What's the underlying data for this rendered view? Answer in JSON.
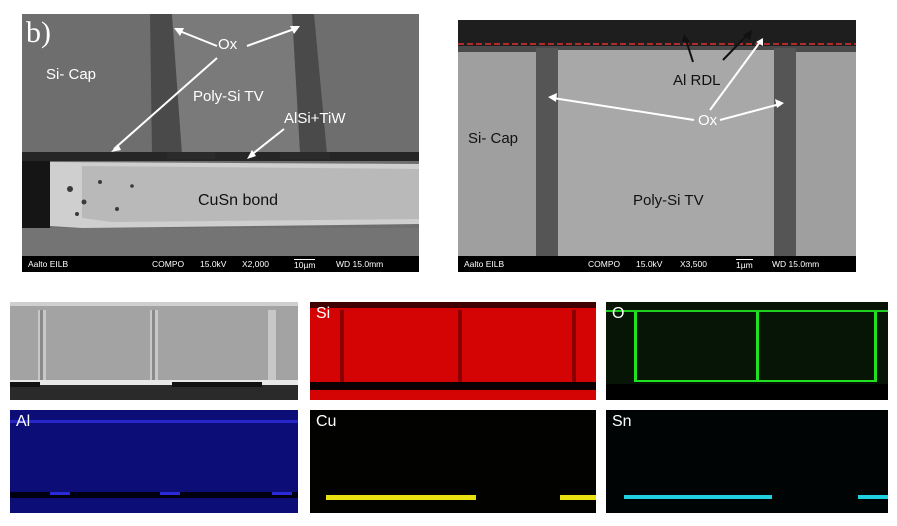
{
  "panel_b": {
    "letter": "b)",
    "labels": {
      "ox": "Ox",
      "si_cap": "Si- Cap",
      "poly_si_tv": "Poly-Si TV",
      "alsi_tiw": "AlSi+TiW",
      "cusn_bond": "CuSn bond"
    },
    "infobar": {
      "lab": "Aalto EILB",
      "mode": "COMPO",
      "kv": "15.0kV",
      "mag": "X2,000",
      "scale": "10µm",
      "wd": "WD 15.0mm"
    }
  },
  "panel_right": {
    "labels": {
      "al_rdl": "Al RDL",
      "ox": "Ox",
      "si_cap": "Si- Cap",
      "poly_si_tv": "Poly-Si TV"
    },
    "infobar": {
      "lab": "Aalto EILB",
      "mode": "COMPO",
      "kv": "15.0kV",
      "mag": "X3,500",
      "scale": "1µm",
      "wd": "WD 15.0mm"
    },
    "reference_line_color": "#e03030"
  },
  "eds_maps": [
    {
      "label": "",
      "color": "#9a9a9a"
    },
    {
      "label": "Si",
      "color": "#e00000"
    },
    {
      "label": "O",
      "color": "#10c010"
    },
    {
      "label": "Al",
      "color": "#1a1ad0"
    },
    {
      "label": "Cu",
      "color": "#e8e010"
    },
    {
      "label": "Sn",
      "color": "#20d0e0"
    }
  ]
}
